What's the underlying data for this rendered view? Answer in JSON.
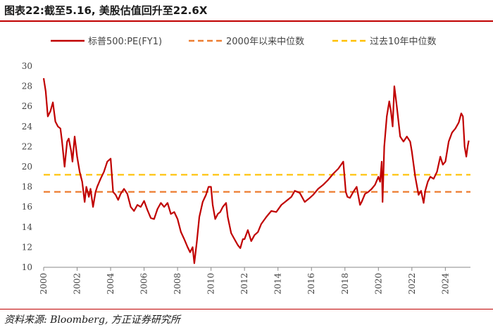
{
  "figure": {
    "title": "图表22:截至5.16, 美股估值回升至22.6X",
    "source": "资料来源: Bloomberg, 方正证券研究所"
  },
  "chart_data": {
    "type": "line",
    "title": "",
    "xlabel": "",
    "ylabel": "",
    "xlim": [
      2000,
      2025.5
    ],
    "ylim": [
      10,
      30
    ],
    "yticks": [
      10,
      12,
      14,
      16,
      18,
      20,
      22,
      24,
      26,
      28,
      30
    ],
    "xticks": [
      "2000",
      "2002",
      "2004",
      "2006",
      "2008",
      "2010",
      "2012",
      "2014",
      "2016",
      "2018",
      "2020",
      "2022",
      "2024"
    ],
    "legend_position": "top",
    "grid": false,
    "series": [
      {
        "name": "标普500:PE(FY1)",
        "style": "solid",
        "color": "#c00000",
        "x": [
          2000.0,
          2000.12,
          2000.25,
          2000.4,
          2000.55,
          2000.7,
          2000.85,
          2001.0,
          2001.1,
          2001.25,
          2001.4,
          2001.5,
          2001.65,
          2001.72,
          2001.85,
          2002.0,
          2002.15,
          2002.3,
          2002.45,
          2002.55,
          2002.7,
          2002.8,
          2002.95,
          2003.1,
          2003.2,
          2003.4,
          2003.6,
          2003.8,
          2004.0,
          2004.15,
          2004.3,
          2004.45,
          2004.6,
          2004.8,
          2005.0,
          2005.2,
          2005.4,
          2005.6,
          2005.8,
          2006.0,
          2006.2,
          2006.4,
          2006.6,
          2006.8,
          2007.0,
          2007.2,
          2007.4,
          2007.6,
          2007.8,
          2008.0,
          2008.2,
          2008.4,
          2008.6,
          2008.75,
          2008.9,
          2009.0,
          2009.15,
          2009.3,
          2009.5,
          2009.7,
          2009.85,
          2010.0,
          2010.1,
          2010.25,
          2010.4,
          2010.55,
          2010.7,
          2010.9,
          2011.0,
          2011.2,
          2011.4,
          2011.6,
          2011.75,
          2011.9,
          2012.0,
          2012.2,
          2012.4,
          2012.6,
          2012.8,
          2013.0,
          2013.3,
          2013.6,
          2013.9,
          2014.2,
          2014.5,
          2014.8,
          2015.0,
          2015.3,
          2015.6,
          2015.9,
          2016.1,
          2016.4,
          2016.7,
          2017.0,
          2017.3,
          2017.6,
          2017.9,
          2018.05,
          2018.15,
          2018.3,
          2018.5,
          2018.7,
          2018.9,
          2019.0,
          2019.2,
          2019.4,
          2019.6,
          2019.8,
          2020.0,
          2020.1,
          2020.2,
          2020.25,
          2020.35,
          2020.5,
          2020.65,
          2020.75,
          2020.85,
          2020.95,
          2021.1,
          2021.3,
          2021.5,
          2021.7,
          2021.9,
          2022.0,
          2022.2,
          2022.4,
          2022.55,
          2022.7,
          2022.8,
          2022.95,
          2023.1,
          2023.3,
          2023.5,
          2023.7,
          2023.85,
          2024.0,
          2024.2,
          2024.4,
          2024.6,
          2024.8,
          2024.95,
          2025.05,
          2025.15,
          2025.25,
          2025.33,
          2025.4
        ],
        "values": [
          28.8,
          27.5,
          25.0,
          25.5,
          26.4,
          24.5,
          24.0,
          23.8,
          22.5,
          20.0,
          22.5,
          22.8,
          21.5,
          20.5,
          23.0,
          21.0,
          19.5,
          18.5,
          16.5,
          18.0,
          17.0,
          17.8,
          16.0,
          17.5,
          18.0,
          18.8,
          19.5,
          20.5,
          20.8,
          17.5,
          17.2,
          16.7,
          17.3,
          17.8,
          17.3,
          16.0,
          15.6,
          16.2,
          16.0,
          16.6,
          15.7,
          14.9,
          14.8,
          15.8,
          16.4,
          16.0,
          16.4,
          15.3,
          15.5,
          14.8,
          13.5,
          12.8,
          12.0,
          11.5,
          12.0,
          10.4,
          12.5,
          15.0,
          16.5,
          17.2,
          18.0,
          18.0,
          16.2,
          14.8,
          15.3,
          15.5,
          16.0,
          16.4,
          15.0,
          13.4,
          12.8,
          12.2,
          11.9,
          12.8,
          12.8,
          13.7,
          12.6,
          13.2,
          13.5,
          14.3,
          15.0,
          15.6,
          15.5,
          16.2,
          16.6,
          17.0,
          17.6,
          17.4,
          16.5,
          16.9,
          17.2,
          17.8,
          18.2,
          18.7,
          19.3,
          19.8,
          20.5,
          17.5,
          17.0,
          16.9,
          17.5,
          18.0,
          16.2,
          16.5,
          17.3,
          17.5,
          17.8,
          18.2,
          19.0,
          18.5,
          20.5,
          16.5,
          22.0,
          25.0,
          26.5,
          25.5,
          24.0,
          28.0,
          26.0,
          23.0,
          22.5,
          23.0,
          22.5,
          21.5,
          19.0,
          17.2,
          17.6,
          16.4,
          17.6,
          18.5,
          19.0,
          18.8,
          19.5,
          21.0,
          20.2,
          20.5,
          22.5,
          23.4,
          23.8,
          24.4,
          25.3,
          25.0,
          22.0,
          21.0,
          22.0,
          22.6
        ]
      },
      {
        "name": "2000年以来中位数",
        "style": "dashed",
        "color": "#ed7d31",
        "y": 17.5
      },
      {
        "name": "过去10年中位数",
        "style": "dashed",
        "color": "#ffc000",
        "y": 19.2
      }
    ]
  }
}
